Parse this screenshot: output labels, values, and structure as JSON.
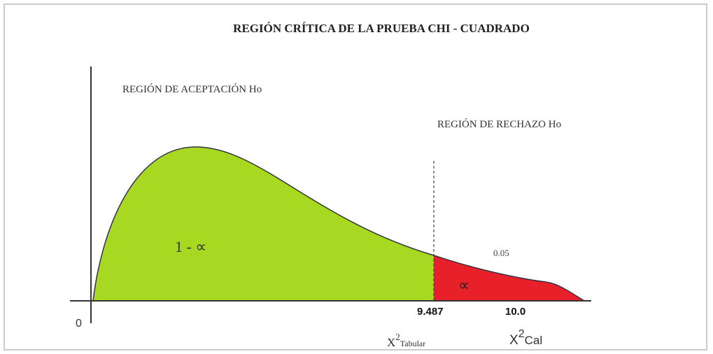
{
  "title": "REGIÓN CRÍTICA DE LA PRUEBA CHI - CUADRADO",
  "regions": {
    "acceptance": "REGIÓN DE ACEPTACIÓN Ho",
    "rejection": "REGIÓN DE RECHAZO Ho"
  },
  "areas": {
    "acceptance": "1 - ∝",
    "rejection": "∝",
    "alpha_value": "0.05"
  },
  "axis": {
    "origin": "0",
    "critical_value": "9.487",
    "calculated_value": "10.0"
  },
  "x_tabular": {
    "symbol": "X",
    "exponent": "2",
    "subscript": "Tabular"
  },
  "x_calculated": {
    "symbol": "X",
    "exponent": "2",
    "subscript": "Cal"
  }
}
